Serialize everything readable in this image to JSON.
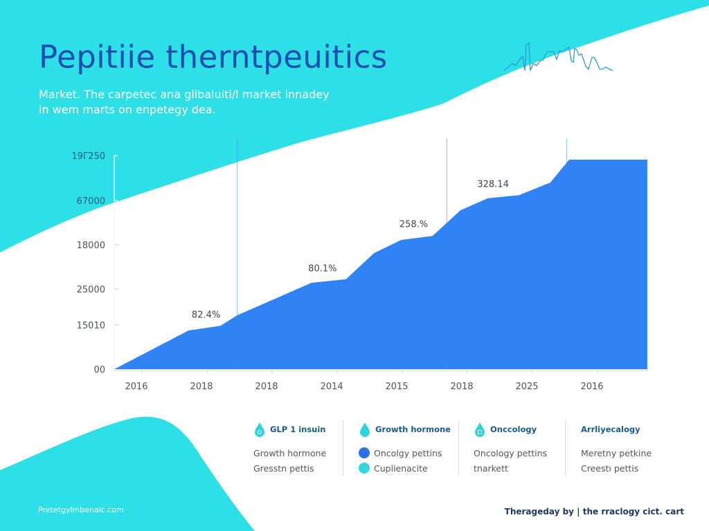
{
  "header": {
    "title": "Pepitiie therntpeuitics",
    "subtitle": "Market. The carpetec ana glibaluiti/l market innadey in wem marts on enpetegy dea."
  },
  "colors": {
    "background_accent": "#2ddfe6",
    "area_fill": "#2f83f5",
    "title": "#1a4fb0",
    "legend_dark_blue": "#2f6fe8",
    "legend_cyan": "#35d6e0"
  },
  "chart_data": {
    "type": "area",
    "title": "",
    "xlabel": "",
    "ylabel": "",
    "x_tick_labels": [
      "2016",
      "2018",
      "2018",
      "2014",
      "2015",
      "2018",
      "2025",
      "2016"
    ],
    "y_tick_labels": [
      "00",
      "15010",
      "25000",
      "18000",
      "67000",
      "19Γ250"
    ],
    "y_units": "tick index (axis labels are not monotonic)",
    "xlim": [
      -0.34,
      7.85
    ],
    "ylim": [
      0,
      5
    ],
    "grid": false,
    "points": [
      [
        -0.34,
        0
      ],
      [
        0.8,
        0.875
      ],
      [
        1.29,
        0.98
      ],
      [
        1.55,
        1.27
      ],
      [
        2.69,
        2.14
      ],
      [
        3.22,
        2.22
      ],
      [
        3.65,
        2.81
      ],
      [
        4.07,
        3.11
      ],
      [
        4.55,
        3.2
      ],
      [
        4.98,
        3.78
      ],
      [
        5.4,
        4.05
      ],
      [
        5.88,
        4.12
      ],
      [
        6.36,
        4.4
      ],
      [
        6.65,
        4.91
      ],
      [
        7.85,
        4.91
      ]
    ],
    "annotations": [
      {
        "text": "82.4%",
        "x": 1.07,
        "y": 1.2
      },
      {
        "text": "80.1%",
        "x": 2.86,
        "y": 2.4
      },
      {
        "text": "258.%",
        "x": 4.26,
        "y": 3.4
      },
      {
        "text": "328.14",
        "x": 5.48,
        "y": 4.3
      }
    ]
  },
  "legend": [
    {
      "heading": "GLP 1 insuin",
      "icon": "drop-icon",
      "items": [
        {
          "label": "Growth hormone"
        },
        {
          "label": "Gresstn pettis"
        }
      ]
    },
    {
      "heading": "Growth hormone",
      "icon": "drop-icon",
      "items": [
        {
          "label": "Oncolgy pettins",
          "color": "#2f6fe8"
        },
        {
          "label": "Cuplienacite",
          "color": "#35d6e0"
        }
      ]
    },
    {
      "heading": "Onccology",
      "icon": "drop-icon",
      "items": [
        {
          "label": "Oncology pettins"
        },
        {
          "label": "tnarkett"
        }
      ]
    },
    {
      "heading": "Arrliyecalogy",
      "icon": "none",
      "items": [
        {
          "label": "Meretny petkine"
        },
        {
          "label": "Creestı pettis"
        }
      ]
    }
  ],
  "footer": {
    "left": "Pretetgylmbenaic.com",
    "right": "Therageday by | the rraclogy cict. cart"
  }
}
